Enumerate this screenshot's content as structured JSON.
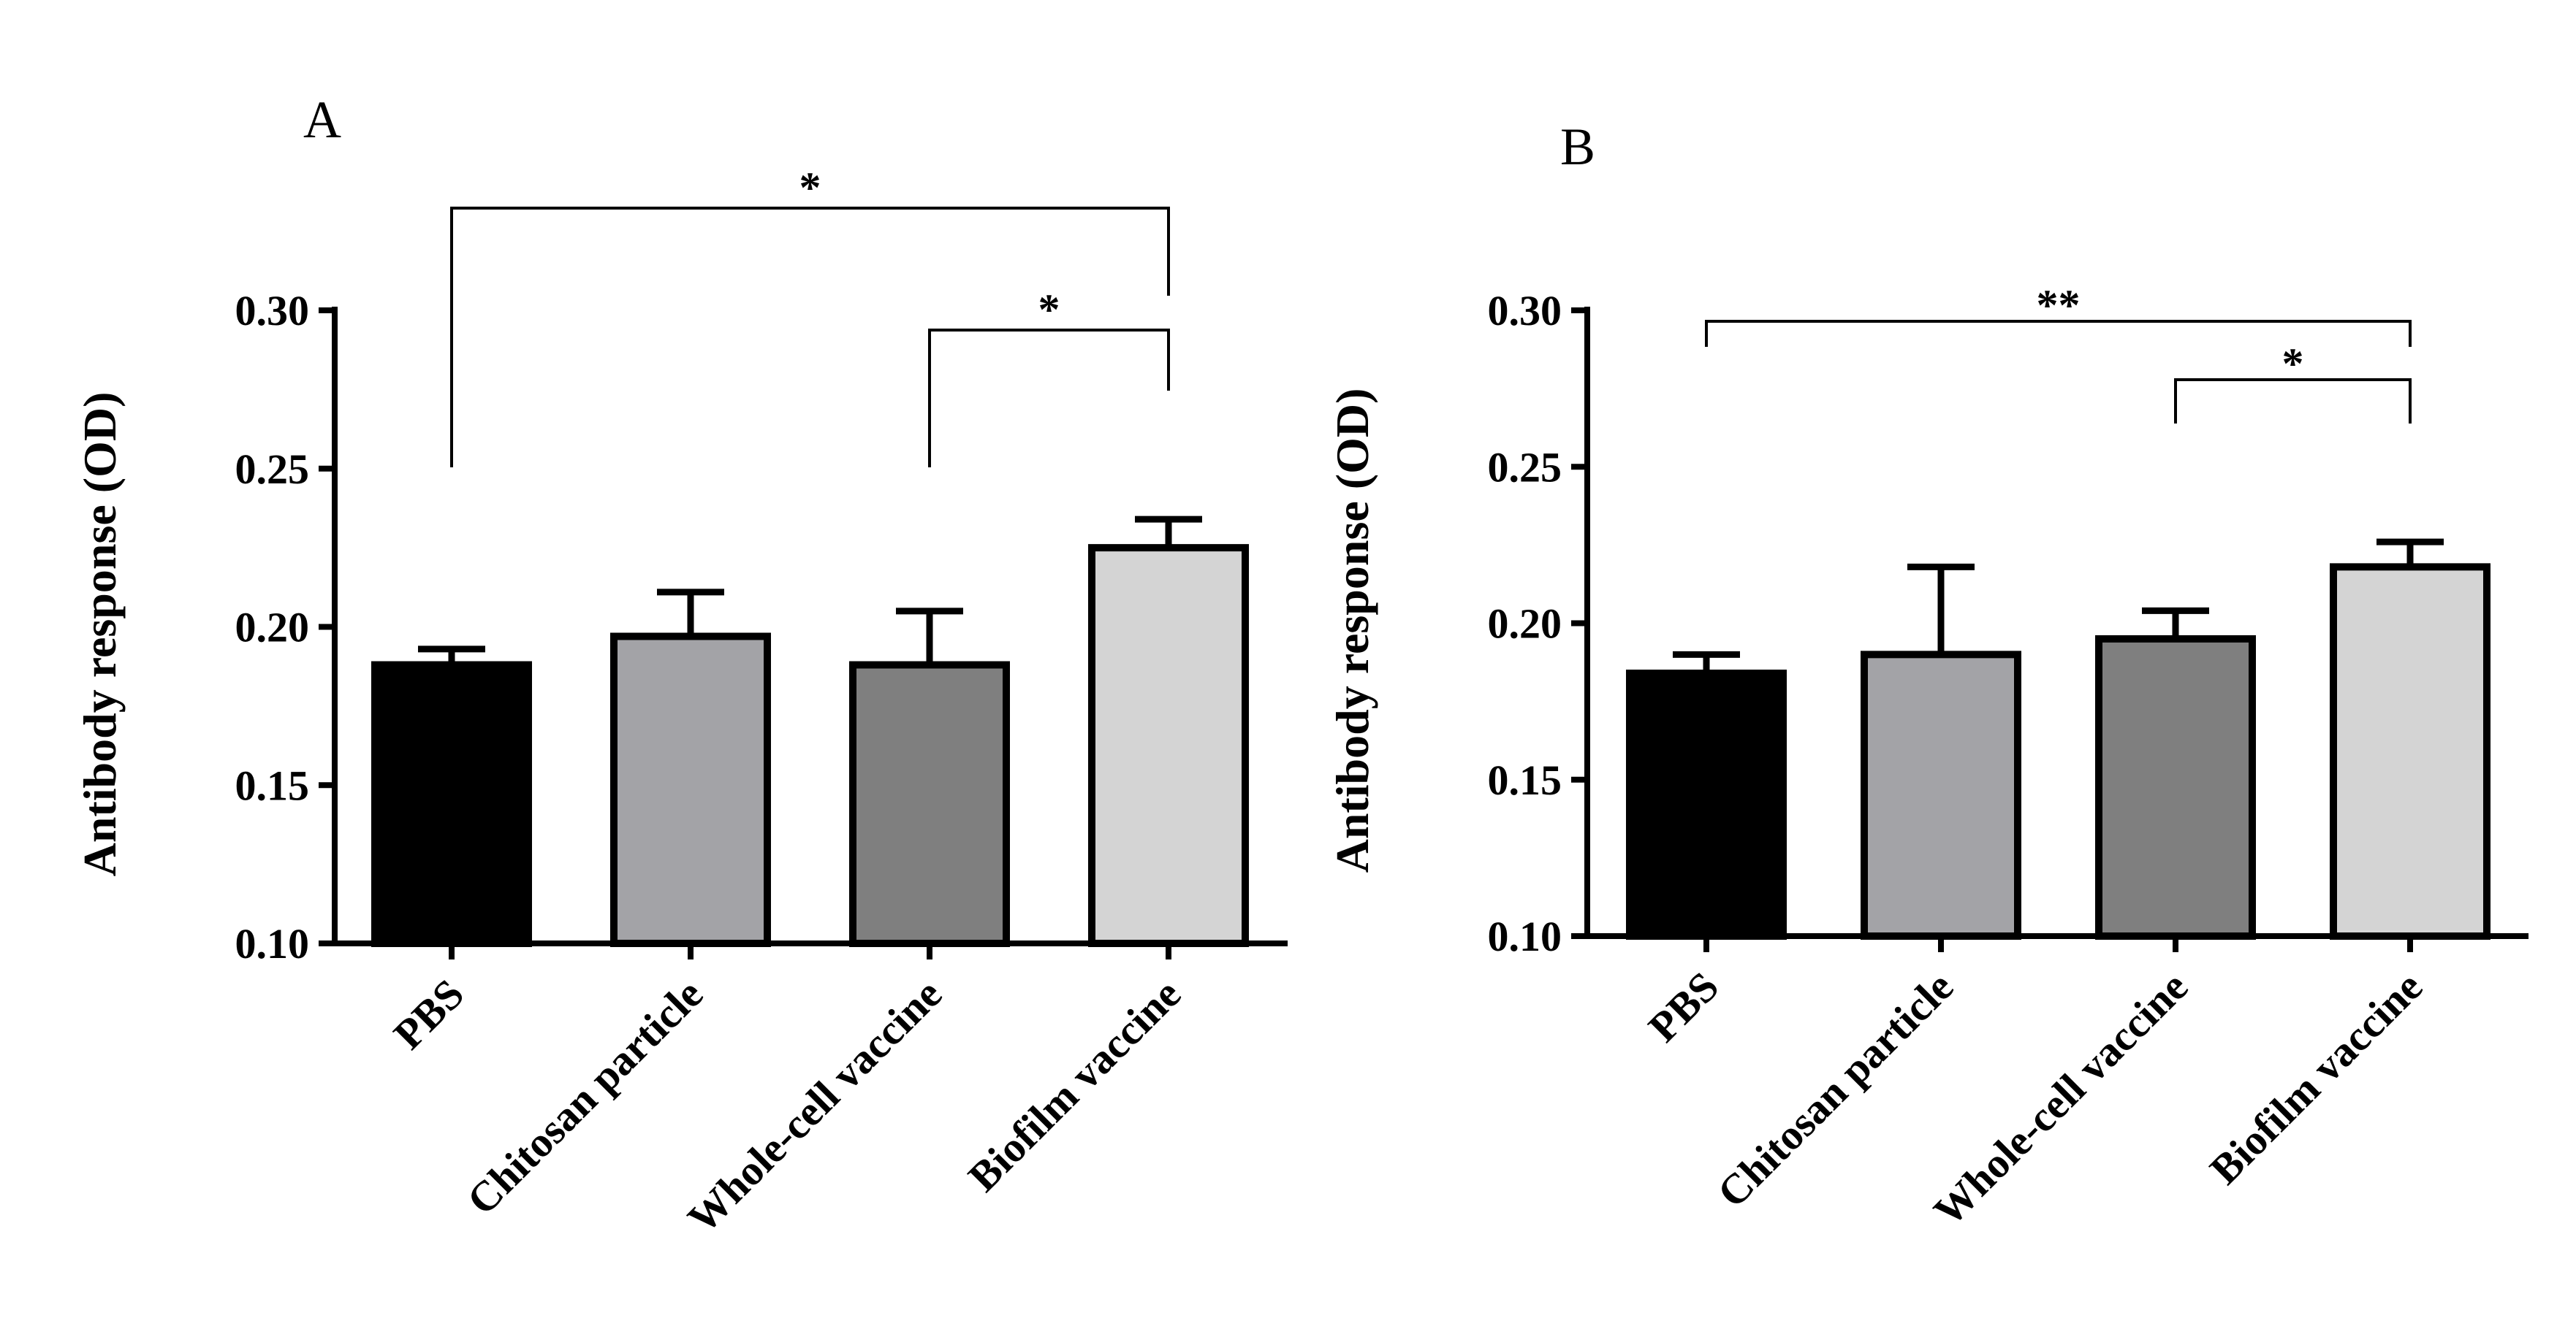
{
  "chart_data": [
    {
      "type": "bar",
      "panel": "A",
      "title": "",
      "xlabel": "",
      "ylabel": "Antibody response (OD)",
      "ylim": [
        0.1,
        0.3
      ],
      "yticks": [
        "0.10",
        "0.15",
        "0.20",
        "0.25",
        "0.30"
      ],
      "categories": [
        "PBS",
        "Chitosan particle",
        "Whole-cell vaccine",
        "Biofilm vaccine"
      ],
      "values": [
        0.188,
        0.197,
        0.188,
        0.225
      ],
      "errors": [
        0.005,
        0.014,
        0.017,
        0.009
      ],
      "colors": [
        "#000000",
        "#a3a3a7",
        "#7f7f7f",
        "#d4d4d4"
      ],
      "significance": [
        {
          "from": 0,
          "to": 3,
          "label": "*"
        },
        {
          "from": 2,
          "to": 3,
          "label": "*"
        }
      ]
    },
    {
      "type": "bar",
      "panel": "B",
      "title": "",
      "xlabel": "",
      "ylabel": "Antibody response (OD)",
      "ylim": [
        0.1,
        0.3
      ],
      "yticks": [
        "0.10",
        "0.15",
        "0.20",
        "0.25",
        "0.30"
      ],
      "categories": [
        "PBS",
        "Chitosan particle",
        "Whole-cell vaccine",
        "Biofilm vaccine"
      ],
      "values": [
        0.184,
        0.19,
        0.195,
        0.218
      ],
      "errors": [
        0.006,
        0.028,
        0.009,
        0.008
      ],
      "colors": [
        "#000000",
        "#a3a3a7",
        "#7f7f7f",
        "#d4d4d4"
      ],
      "significance": [
        {
          "from": 0,
          "to": 3,
          "label": "**"
        },
        {
          "from": 2,
          "to": 3,
          "label": "*"
        }
      ]
    }
  ]
}
